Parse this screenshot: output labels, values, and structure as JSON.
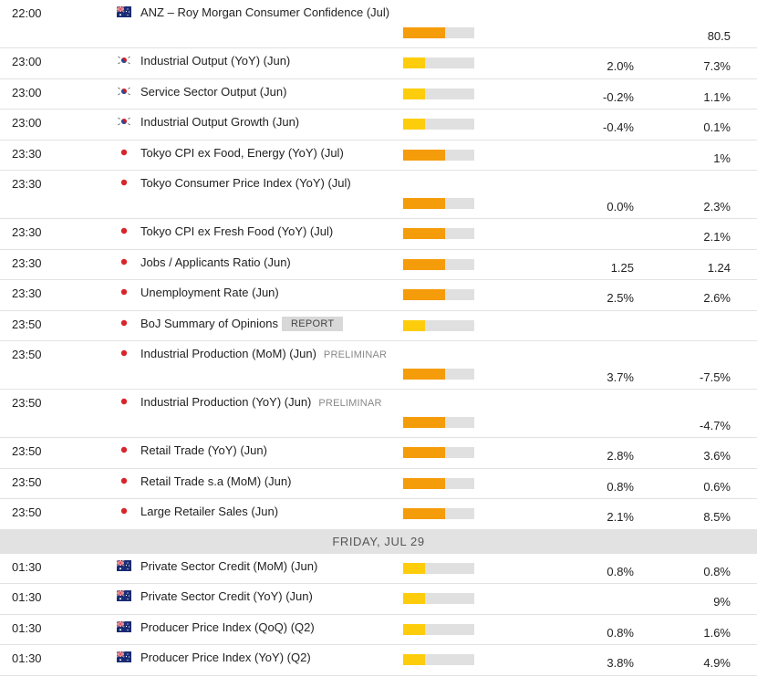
{
  "colors": {
    "high": "#f59c0a",
    "medium": "#fdcd0c",
    "empty": "#e0e0e0"
  },
  "day_separator": "FRIDAY, JUL 29",
  "rows_before": [
    {
      "time": "22:00",
      "country": "au",
      "title": "ANZ – Roy Morgan Consumer Confidence (Jul)",
      "importance": "high",
      "prev": "",
      "actual": "80.5",
      "tall": true
    },
    {
      "time": "23:00",
      "country": "kr",
      "title": "Industrial Output (YoY) (Jun)",
      "importance": "medium",
      "prev": "2.0%",
      "actual": "7.3%"
    },
    {
      "time": "23:00",
      "country": "kr",
      "title": "Service Sector Output (Jun)",
      "importance": "medium",
      "prev": "-0.2%",
      "actual": "1.1%"
    },
    {
      "time": "23:00",
      "country": "kr",
      "title": "Industrial Output Growth (Jun)",
      "importance": "medium",
      "prev": "-0.4%",
      "actual": "0.1%"
    },
    {
      "time": "23:30",
      "country": "jp",
      "title": "Tokyo CPI ex Food, Energy (YoY) (Jul)",
      "importance": "high",
      "prev": "",
      "actual": "1%"
    },
    {
      "time": "23:30",
      "country": "jp",
      "title": "Tokyo Consumer Price Index (YoY) (Jul)",
      "importance": "high",
      "prev": "0.0%",
      "actual": "2.3%",
      "tall": true
    },
    {
      "time": "23:30",
      "country": "jp",
      "title": "Tokyo CPI ex Fresh Food (YoY) (Jul)",
      "importance": "high",
      "prev": "",
      "actual": "2.1%"
    },
    {
      "time": "23:30",
      "country": "jp",
      "title": "Jobs / Applicants Ratio (Jun)",
      "importance": "high",
      "prev": "1.25",
      "actual": "1.24"
    },
    {
      "time": "23:30",
      "country": "jp",
      "title": "Unemployment Rate (Jun)",
      "importance": "high",
      "prev": "2.5%",
      "actual": "2.6%"
    },
    {
      "time": "23:50",
      "country": "jp",
      "title": "BoJ Summary of Opinions",
      "badge": "REPORT",
      "importance": "medium",
      "prev": "",
      "actual": ""
    },
    {
      "time": "23:50",
      "country": "jp",
      "title": "Industrial Production (MoM) (Jun)",
      "tag": "PRELIMINAR",
      "importance": "high",
      "prev": "3.7%",
      "actual": "-7.5%",
      "tall": true
    },
    {
      "time": "23:50",
      "country": "jp",
      "title": "Industrial Production (YoY) (Jun)",
      "tag": "PRELIMINAR",
      "importance": "high",
      "prev": "",
      "actual": "-4.7%",
      "tall": true
    },
    {
      "time": "23:50",
      "country": "jp",
      "title": "Retail Trade (YoY) (Jun)",
      "importance": "high",
      "prev": "2.8%",
      "actual": "3.6%"
    },
    {
      "time": "23:50",
      "country": "jp",
      "title": "Retail Trade s.a (MoM) (Jun)",
      "importance": "high",
      "prev": "0.8%",
      "actual": "0.6%"
    },
    {
      "time": "23:50",
      "country": "jp",
      "title": "Large Retailer Sales (Jun)",
      "importance": "high",
      "prev": "2.1%",
      "actual": "8.5%"
    }
  ],
  "rows_after": [
    {
      "time": "01:30",
      "country": "au",
      "title": "Private Sector Credit (MoM) (Jun)",
      "importance": "medium",
      "prev": "0.8%",
      "actual": "0.8%"
    },
    {
      "time": "01:30",
      "country": "au",
      "title": "Private Sector Credit (YoY) (Jun)",
      "importance": "medium",
      "prev": "",
      "actual": "9%"
    },
    {
      "time": "01:30",
      "country": "au",
      "title": "Producer Price Index (QoQ) (Q2)",
      "importance": "medium",
      "prev": "0.8%",
      "actual": "1.6%"
    },
    {
      "time": "01:30",
      "country": "au",
      "title": "Producer Price Index (YoY) (Q2)",
      "importance": "medium",
      "prev": "3.8%",
      "actual": "4.9%"
    }
  ]
}
